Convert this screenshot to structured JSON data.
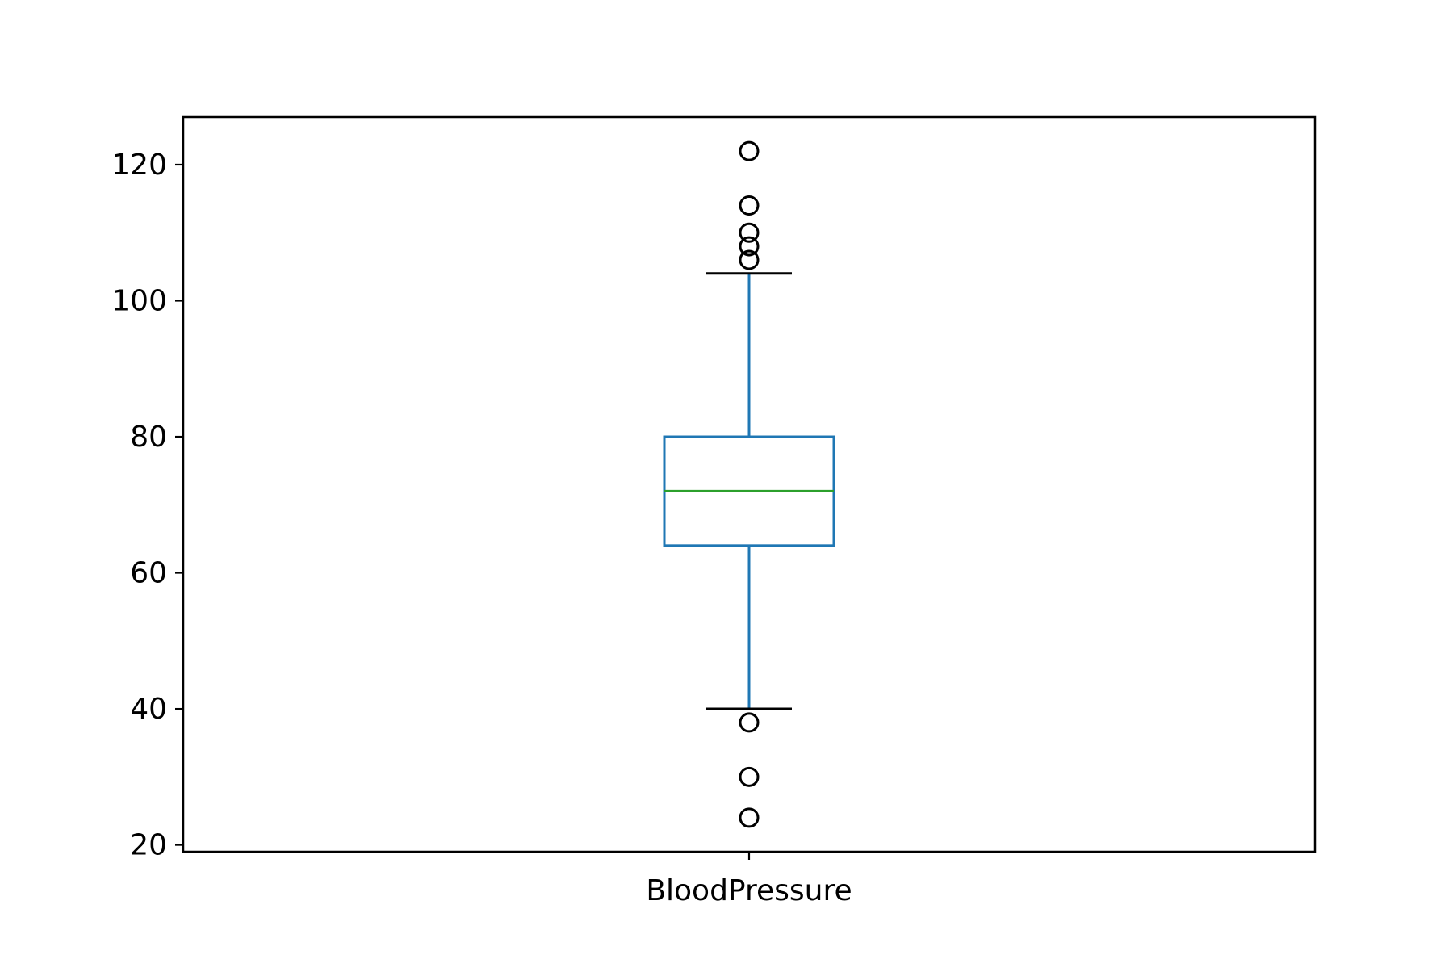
{
  "chart_data": {
    "type": "box",
    "title": "",
    "xlabel": "",
    "ylabel": "",
    "categories": [
      "BloodPressure"
    ],
    "ylim": [
      19,
      127
    ],
    "yticks": [
      20,
      40,
      60,
      80,
      100,
      120
    ],
    "grid": false,
    "series": [
      {
        "name": "",
        "whisker_low": 40,
        "q1": 64,
        "median": 72,
        "q3": 80,
        "whisker_high": 104,
        "outliers": [
          24,
          30,
          38,
          106,
          108,
          110,
          114,
          122
        ]
      }
    ],
    "colors": {
      "box": "#1f77b4",
      "median": "#2ca02c",
      "caps": "#000000",
      "outliers": "#000000",
      "axes": "#000000"
    }
  }
}
